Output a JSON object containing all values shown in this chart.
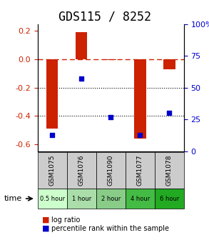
{
  "title": "GDS115 / 8252",
  "samples": [
    "GSM1075",
    "GSM1076",
    "GSM1090",
    "GSM1077",
    "GSM1078"
  ],
  "time_labels": [
    "0.5 hour",
    "1 hour",
    "2 hour",
    "4 hour",
    "6 hour"
  ],
  "log_ratios": [
    -0.49,
    0.19,
    -0.005,
    -0.56,
    -0.07
  ],
  "percentile_ranks": [
    13,
    57,
    27,
    13,
    30
  ],
  "bar_color": "#cc2200",
  "dot_color": "#0000cc",
  "ylim_left": [
    -0.65,
    0.25
  ],
  "ylim_right": [
    0,
    100
  ],
  "yticks_left": [
    -0.6,
    -0.4,
    -0.2,
    0.0,
    0.2
  ],
  "yticks_right": [
    0,
    25,
    50,
    75,
    100
  ],
  "hline_y": 0.0,
  "dotted_lines": [
    -0.2,
    -0.4
  ],
  "time_colors": [
    "#ccffcc",
    "#aaddaa",
    "#88cc88",
    "#44bb44",
    "#22aa22"
  ],
  "sample_bg_color": "#cccccc",
  "legend_labels": [
    "log ratio",
    "percentile rank within the sample"
  ],
  "title_fontsize": 12,
  "tick_fontsize": 8,
  "bar_width": 0.4
}
